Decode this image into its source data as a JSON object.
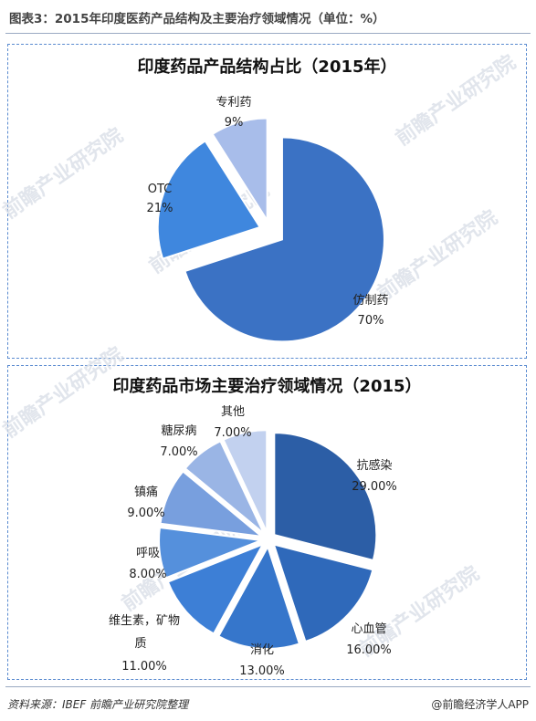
{
  "figure_title": "图表3：2015年印度医药产品结构及主要治疗领域情况（单位：%）",
  "source": "资料来源：IBEF 前瞻产业研究院整理",
  "credit": "@前瞻经济学人APP",
  "watermark": "前瞻产业研究院",
  "chart_data": [
    {
      "type": "pie",
      "title": "印度药品产品结构占比（2015年）",
      "categories": [
        "仿制药",
        "OTC",
        "专利药"
      ],
      "values": [
        70,
        21,
        9
      ],
      "value_labels": [
        "70%",
        "21%",
        "9%"
      ],
      "colors": [
        "#3b72c4",
        "#3f87de",
        "#a8bdea"
      ],
      "exploded": true
    },
    {
      "type": "pie",
      "title": "印度药品市场主要治疗领域情况（2015）",
      "categories": [
        "抗感染",
        "心血管",
        "消化",
        "维生素，矿物质",
        "呼吸",
        "镇痛",
        "糖尿病",
        "其他"
      ],
      "values": [
        29.0,
        16.0,
        13.0,
        11.0,
        8.0,
        9.0,
        7.0,
        7.0
      ],
      "value_labels": [
        "29.00%",
        "16.00%",
        "13.00%",
        "11.00%",
        "8.00%",
        "9.00%",
        "7.00%",
        "7.00%"
      ],
      "colors": [
        "#2c5ea6",
        "#2f69ba",
        "#3676cb",
        "#3d7fd6",
        "#5590dc",
        "#789fde",
        "#9ab5e5",
        "#c2d1ef"
      ],
      "exploded": true
    }
  ]
}
